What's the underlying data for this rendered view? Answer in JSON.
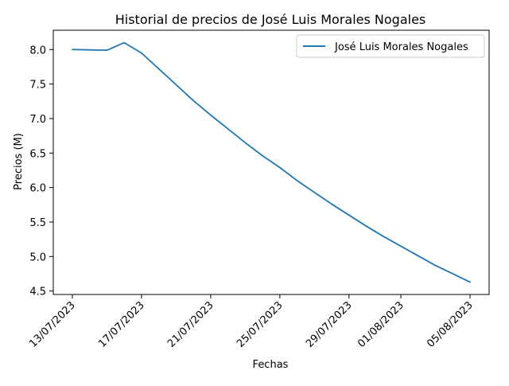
{
  "chart_data": {
    "type": "line",
    "title": "Historial de precios de José Luis Morales Nogales",
    "xlabel": "Fechas",
    "ylabel": "Precios (M)",
    "x": [
      "13/07/2023",
      "14/07/2023",
      "15/07/2023",
      "16/07/2023",
      "17/07/2023",
      "18/07/2023",
      "19/07/2023",
      "20/07/2023",
      "21/07/2023",
      "22/07/2023",
      "23/07/2023",
      "24/07/2023",
      "25/07/2023",
      "26/07/2023",
      "27/07/2023",
      "28/07/2023",
      "29/07/2023",
      "30/07/2023",
      "31/07/2023",
      "01/08/2023",
      "02/08/2023",
      "03/08/2023",
      "04/08/2023",
      "05/08/2023"
    ],
    "series": [
      {
        "name": "José Luis Morales Nogales",
        "color": "#1f77b4",
        "values": [
          8.0,
          7.995,
          7.99,
          8.1,
          7.95,
          7.72,
          7.49,
          7.26,
          7.05,
          6.85,
          6.65,
          6.46,
          6.29,
          6.1,
          5.93,
          5.76,
          5.6,
          5.44,
          5.29,
          5.15,
          5.01,
          4.87,
          4.75,
          4.63
        ]
      }
    ],
    "x_ticks": [
      "13/07/2023",
      "17/07/2023",
      "21/07/2023",
      "25/07/2023",
      "29/07/2023",
      "01/08/2023",
      "05/08/2023"
    ],
    "y_ticks": [
      4.5,
      5.0,
      5.5,
      6.0,
      6.5,
      7.0,
      7.5,
      8.0
    ],
    "y_tick_labels": [
      "4.5",
      "5.0",
      "5.5",
      "6.0",
      "6.5",
      "7.0",
      "7.5",
      "8.0"
    ],
    "ylim": [
      4.45,
      8.28
    ],
    "grid": false,
    "legend_position": "upper right"
  }
}
